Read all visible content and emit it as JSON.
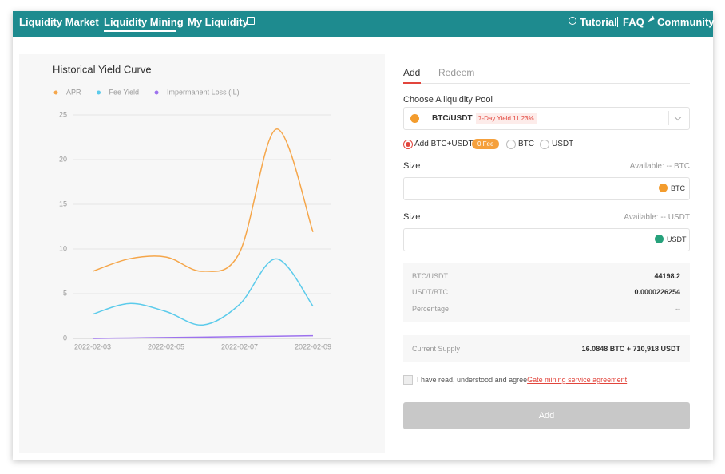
{
  "nav": {
    "items": [
      "Liquidity Market",
      "Liquidity Mining",
      "My Liquidity"
    ],
    "right": [
      "Tutorial",
      "FAQ",
      "Community"
    ]
  },
  "chart_data": {
    "type": "line",
    "title": "Historical Yield Curve",
    "categories": [
      "2022-02-03",
      null,
      "2022-02-05",
      null,
      "2022-02-07",
      null,
      "2022-02-09"
    ],
    "series": [
      {
        "name": "APR",
        "color": "#f5a64a",
        "values": [
          7.5,
          8.9,
          9.1,
          7.5,
          9.6,
          23.4,
          11.9
        ]
      },
      {
        "name": "Fee Yield",
        "color": "#5ccbeb",
        "values": [
          2.7,
          3.9,
          3.0,
          1.5,
          3.8,
          8.9,
          3.6
        ]
      },
      {
        "name": "Impermanent Loss (IL)",
        "color": "#9d72ee",
        "values": [
          0,
          0.05,
          0.1,
          0.15,
          0.2,
          0.25,
          0.3
        ]
      }
    ],
    "ylim": [
      0,
      25
    ],
    "yticks": [
      0,
      5,
      10,
      15,
      20,
      25
    ],
    "grid": true,
    "legend": "top-left"
  },
  "form": {
    "tabs": [
      "Add",
      "Redeem"
    ],
    "pool_label": "Choose A liquidity Pool",
    "pool": "BTC/USDT",
    "yield_badge": "7-Day Yield 11.23%",
    "options": [
      "Add BTC+USDT",
      "BTC",
      "USDT"
    ],
    "fee_badge": "0 Fee",
    "size1": {
      "label": "Size",
      "available": "Available: -- BTC",
      "unit": "BTC"
    },
    "size2": {
      "label": "Size",
      "available": "Available: -- USDT",
      "unit": "USDT"
    },
    "info": [
      [
        "BTC/USDT",
        "44198.2"
      ],
      [
        "USDT/BTC",
        "0.0000226254"
      ],
      [
        "Percentage",
        "--"
      ]
    ],
    "supply": [
      "Current Supply",
      "16.0848 BTC + 710,918 USDT"
    ],
    "agree": "I have read, understood and agree",
    "agree_link": "Gate mining service agreement",
    "button": "Add"
  }
}
